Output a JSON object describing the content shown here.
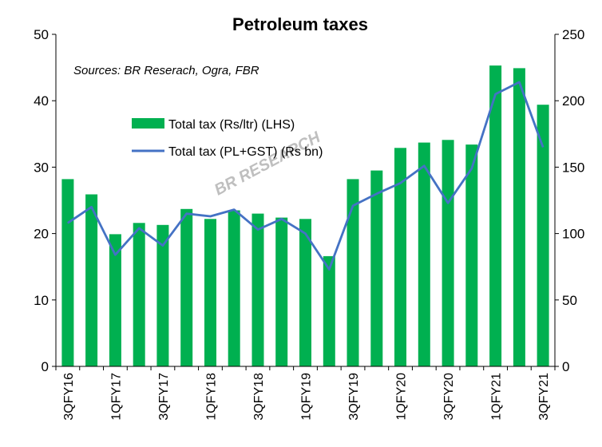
{
  "chart_data": {
    "type": "bar",
    "title": "Petroleum taxes",
    "source": "Sources: BR Reserach, Ogra, FBR",
    "watermark": "BR RESEARCH",
    "categories": [
      "3QFY16",
      "4QFY16",
      "1QFY17",
      "2QFY17",
      "3QFY17",
      "4QFY17",
      "1QFY18",
      "2QFY18",
      "3QFY18",
      "4QFY18",
      "1QFY19",
      "2QFY19",
      "3QFY19",
      "4QFY19",
      "1QFY20",
      "2QFY20",
      "3QFY20",
      "4QFY20",
      "1QFY21",
      "2QFY21",
      "3QFY21"
    ],
    "x_tick_labels": [
      "3QFY16",
      "",
      "1QFY17",
      "",
      "3QFY17",
      "",
      "1QFY18",
      "",
      "3QFY18",
      "",
      "1QFY19",
      "",
      "3QFY19",
      "",
      "1QFY20",
      "",
      "3QFY20",
      "",
      "1QFY21",
      "",
      "3QFY21"
    ],
    "series": [
      {
        "name": "Total tax (Rs/ltr) (LHS)",
        "type": "bar",
        "axis": "left",
        "color": "#00B050",
        "values": [
          28.2,
          25.9,
          19.9,
          21.6,
          21.3,
          23.7,
          22.2,
          23.5,
          23.0,
          22.4,
          22.2,
          16.6,
          28.2,
          29.5,
          32.9,
          33.7,
          34.1,
          33.4,
          45.3,
          44.9,
          39.4
        ]
      },
      {
        "name": "Total tax (PL+GST) (Rs bn)",
        "type": "line",
        "axis": "right",
        "color": "#4472C4",
        "values": [
          108,
          120,
          84,
          104,
          91,
          115,
          113,
          118,
          103,
          111,
          100,
          73,
          121,
          130,
          138,
          151,
          123,
          149,
          205,
          214,
          165
        ]
      }
    ],
    "y_left": {
      "min": 0,
      "max": 50,
      "ticks": [
        0,
        10,
        20,
        30,
        40,
        50
      ]
    },
    "y_right": {
      "min": 0,
      "max": 250,
      "ticks": [
        0,
        50,
        100,
        150,
        200,
        250
      ]
    },
    "legend": "inside-top-left",
    "grid": false
  }
}
